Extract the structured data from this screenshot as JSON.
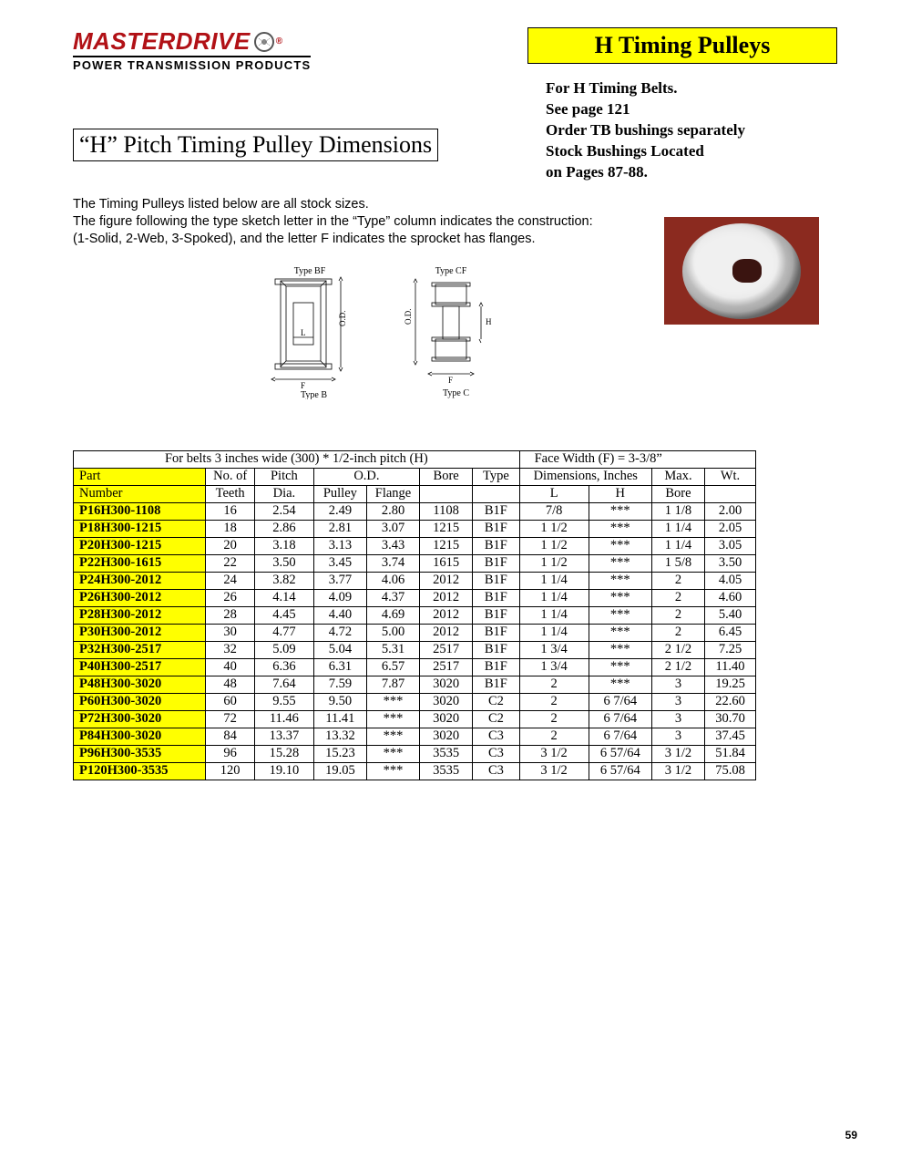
{
  "logo": {
    "main": "MASTERDRIVE",
    "sub": "POWER TRANSMISSION PRODUCTS"
  },
  "banner": "H Timing Pulleys",
  "rightInfo": {
    "l1": "For H Timing Belts.",
    "l2": "See page 121",
    "l3": "Order TB bushings separately",
    "l4": "Stock Bushings Located",
    "l5": "on Pages 87-88."
  },
  "sectionTitle": "“H” Pitch Timing Pulley Dimensions",
  "intro": {
    "l1": "The Timing Pulleys listed below are all stock sizes.",
    "l2": "The figure following the type sketch letter in the “Type” column indicates the construction:",
    "l3": "(1-Solid, 2-Web, 3-Spoked), and the letter F indicates the sprocket has flanges."
  },
  "diagramLabels": {
    "bf": "Type BF",
    "b": "Type B",
    "cf": "Type CF",
    "c": "Type C",
    "od": "O.D.",
    "l": "L",
    "f": "F",
    "h": "H"
  },
  "table": {
    "caption1": "For belts 3 inches wide (300) * 1/2-inch pitch (H)",
    "caption2": "Face Width (F) = 3-3/8”",
    "h1": {
      "part": "Part",
      "no": "No. of",
      "pitch": "Pitch",
      "od": "O.D.",
      "bore": "Bore",
      "type": "Type",
      "dims": "Dimensions, Inches",
      "max": "Max.",
      "wt": "Wt."
    },
    "h2": {
      "number": "Number",
      "teeth": "Teeth",
      "dia": "Dia.",
      "pulley": "Pulley",
      "flange": "Flange",
      "l": "L",
      "h": "H",
      "bore": "Bore"
    },
    "rows": [
      {
        "p": "P16H300-1108",
        "t": "16",
        "pd": "2.54",
        "op": "2.49",
        "of": "2.80",
        "b": "1108",
        "ty": "B1F",
        "l": "7/8",
        "h": "***",
        "mb": "1 1/8",
        "wt": "2.00"
      },
      {
        "p": "P18H300-1215",
        "t": "18",
        "pd": "2.86",
        "op": "2.81",
        "of": "3.07",
        "b": "1215",
        "ty": "B1F",
        "l": "1 1/2",
        "h": "***",
        "mb": "1 1/4",
        "wt": "2.05"
      },
      {
        "p": "P20H300-1215",
        "t": "20",
        "pd": "3.18",
        "op": "3.13",
        "of": "3.43",
        "b": "1215",
        "ty": "B1F",
        "l": "1 1/2",
        "h": "***",
        "mb": "1 1/4",
        "wt": "3.05"
      },
      {
        "p": "P22H300-1615",
        "t": "22",
        "pd": "3.50",
        "op": "3.45",
        "of": "3.74",
        "b": "1615",
        "ty": "B1F",
        "l": "1 1/2",
        "h": "***",
        "mb": "1 5/8",
        "wt": "3.50"
      },
      {
        "p": "P24H300-2012",
        "t": "24",
        "pd": "3.82",
        "op": "3.77",
        "of": "4.06",
        "b": "2012",
        "ty": "B1F",
        "l": "1 1/4",
        "h": "***",
        "mb": "2",
        "wt": "4.05"
      },
      {
        "p": "P26H300-2012",
        "t": "26",
        "pd": "4.14",
        "op": "4.09",
        "of": "4.37",
        "b": "2012",
        "ty": "B1F",
        "l": "1 1/4",
        "h": "***",
        "mb": "2",
        "wt": "4.60"
      },
      {
        "p": "P28H300-2012",
        "t": "28",
        "pd": "4.45",
        "op": "4.40",
        "of": "4.69",
        "b": "2012",
        "ty": "B1F",
        "l": "1 1/4",
        "h": "***",
        "mb": "2",
        "wt": "5.40"
      },
      {
        "p": "P30H300-2012",
        "t": "30",
        "pd": "4.77",
        "op": "4.72",
        "of": "5.00",
        "b": "2012",
        "ty": "B1F",
        "l": "1 1/4",
        "h": "***",
        "mb": "2",
        "wt": "6.45"
      },
      {
        "p": "P32H300-2517",
        "t": "32",
        "pd": "5.09",
        "op": "5.04",
        "of": "5.31",
        "b": "2517",
        "ty": "B1F",
        "l": "1 3/4",
        "h": "***",
        "mb": "2 1/2",
        "wt": "7.25"
      },
      {
        "p": "P40H300-2517",
        "t": "40",
        "pd": "6.36",
        "op": "6.31",
        "of": "6.57",
        "b": "2517",
        "ty": "B1F",
        "l": "1 3/4",
        "h": "***",
        "mb": "2 1/2",
        "wt": "11.40"
      },
      {
        "p": "P48H300-3020",
        "t": "48",
        "pd": "7.64",
        "op": "7.59",
        "of": "7.87",
        "b": "3020",
        "ty": "B1F",
        "l": "2",
        "h": "***",
        "mb": "3",
        "wt": "19.25"
      },
      {
        "p": "P60H300-3020",
        "t": "60",
        "pd": "9.55",
        "op": "9.50",
        "of": "***",
        "b": "3020",
        "ty": "C2",
        "l": "2",
        "h": "6 7/64",
        "mb": "3",
        "wt": "22.60"
      },
      {
        "p": "P72H300-3020",
        "t": "72",
        "pd": "11.46",
        "op": "11.41",
        "of": "***",
        "b": "3020",
        "ty": "C2",
        "l": "2",
        "h": "6 7/64",
        "mb": "3",
        "wt": "30.70"
      },
      {
        "p": "P84H300-3020",
        "t": "84",
        "pd": "13.37",
        "op": "13.32",
        "of": "***",
        "b": "3020",
        "ty": "C3",
        "l": "2",
        "h": "6 7/64",
        "mb": "3",
        "wt": "37.45"
      },
      {
        "p": "P96H300-3535",
        "t": "96",
        "pd": "15.28",
        "op": "15.23",
        "of": "***",
        "b": "3535",
        "ty": "C3",
        "l": "3 1/2",
        "h": "6 57/64",
        "mb": "3 1/2",
        "wt": "51.84"
      },
      {
        "p": "P120H300-3535",
        "t": "120",
        "pd": "19.10",
        "op": "19.05",
        "of": "***",
        "b": "3535",
        "ty": "C3",
        "l": "3 1/2",
        "h": "6 57/64",
        "mb": "3 1/2",
        "wt": "75.08"
      }
    ]
  },
  "pageNum": "59",
  "colors": {
    "yellow": "#ffff00",
    "logoRed": "#b11116",
    "photoBg": "#8b2a1f"
  }
}
